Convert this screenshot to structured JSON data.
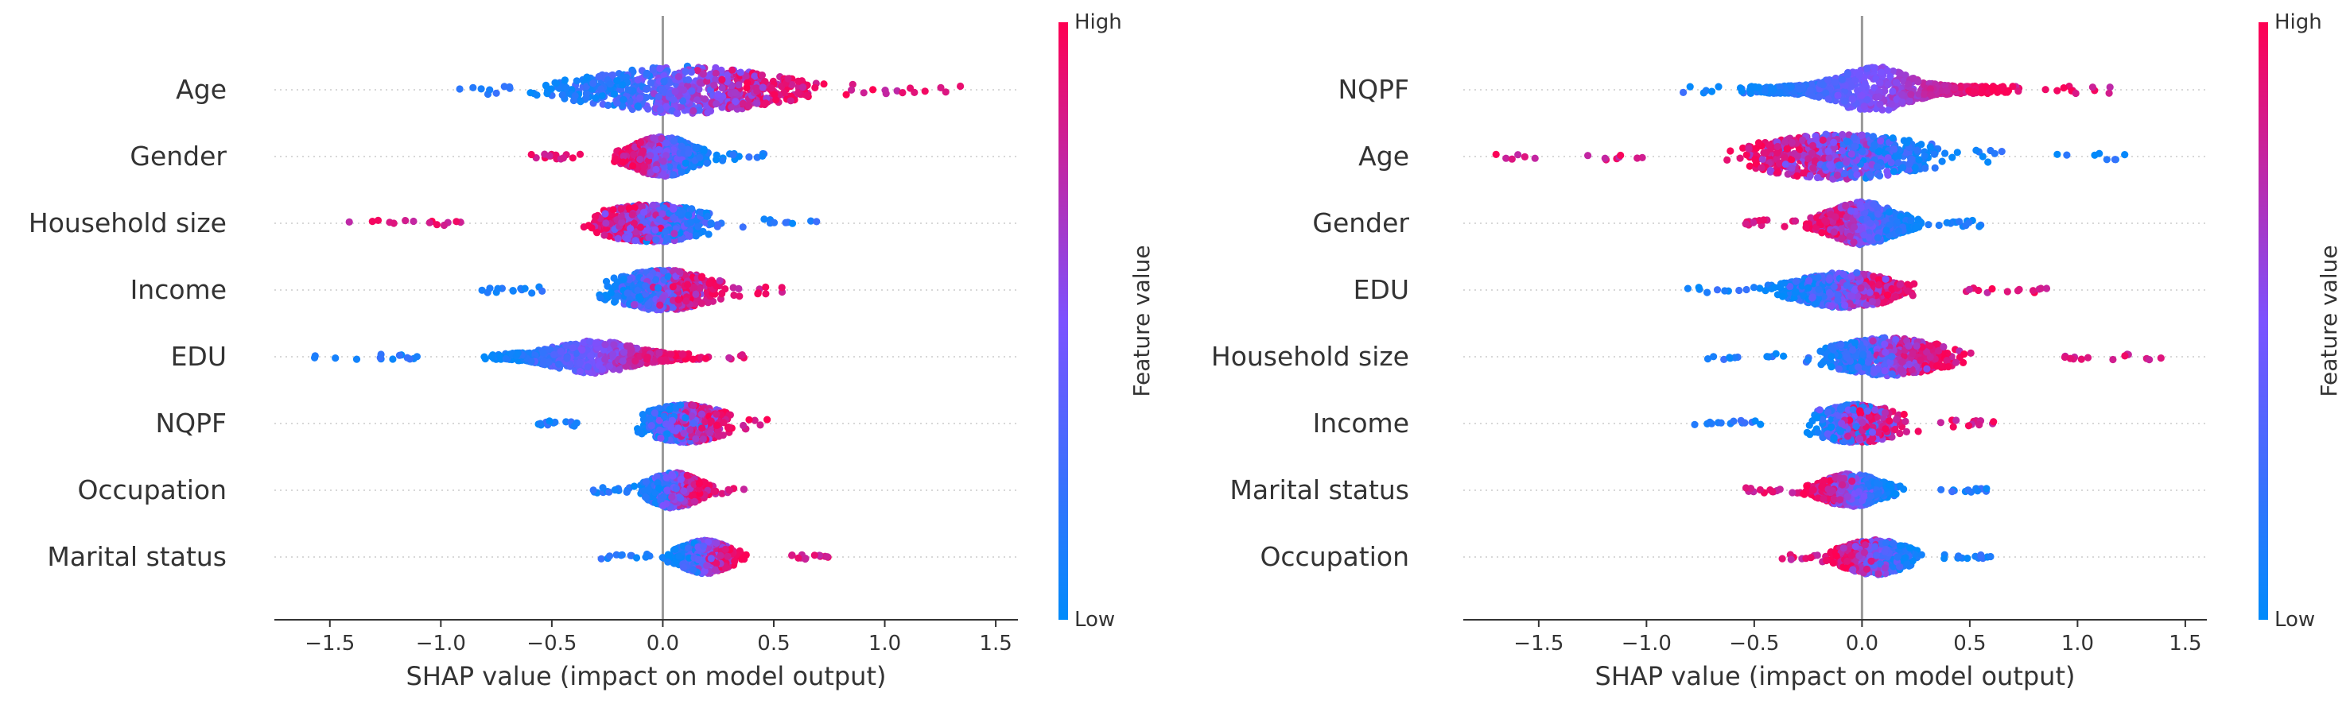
{
  "colors": {
    "low": "#008bfb",
    "mid": "#7c52ff",
    "high": "#ff0052",
    "zero_line": "#999999",
    "axis": "#333333",
    "guide": "#cccccc"
  },
  "chart_data": [
    {
      "type": "scatter",
      "subtype": "shap-beeswarm",
      "xlabel": "SHAP value (impact on model output)",
      "xlim": [
        -1.75,
        1.6
      ],
      "xticks": [
        -1.5,
        -1.0,
        -0.5,
        0.0,
        0.5,
        1.0,
        1.5
      ],
      "xtick_labels": [
        "−1.5",
        "−1.0",
        "−0.5",
        "0.0",
        "0.5",
        "1.0",
        "1.5"
      ],
      "colorbar": {
        "label": "Feature value",
        "high": "High",
        "low": "Low"
      },
      "features": [
        {
          "name": "Age",
          "min": -0.97,
          "max": 1.42,
          "low_center": -0.35,
          "high_center": 0.55,
          "spread": 0.55,
          "height": 1.0,
          "low_side": "left"
        },
        {
          "name": "Gender",
          "min": -0.63,
          "max": 0.47,
          "low_center": 0.15,
          "high_center": -0.15,
          "spread": 0.18,
          "height": 0.85,
          "low_side": "right"
        },
        {
          "name": "Household size",
          "min": -1.42,
          "max": 0.7,
          "low_center": 0.1,
          "high_center": -0.2,
          "spread": 0.35,
          "height": 0.8,
          "low_side": "right"
        },
        {
          "name": "Income",
          "min": -0.84,
          "max": 0.61,
          "low_center": -0.15,
          "high_center": 0.15,
          "spread": 0.3,
          "height": 0.85,
          "low_side": "left"
        },
        {
          "name": "EDU",
          "min": -1.6,
          "max": 0.38,
          "low_center": -0.7,
          "high_center": 0.08,
          "spread": 0.25,
          "height": 0.7,
          "low_side": "left"
        },
        {
          "name": "NQPF",
          "min": -0.65,
          "max": 0.47,
          "low_center": 0.0,
          "high_center": 0.2,
          "spread": 0.25,
          "height": 0.8,
          "low_side": "left"
        },
        {
          "name": "Occupation",
          "min": -0.32,
          "max": 0.38,
          "low_center": -0.05,
          "high_center": 0.15,
          "spread": 0.15,
          "height": 0.75,
          "low_side": "left"
        },
        {
          "name": "Marital status",
          "min": -0.28,
          "max": 0.86,
          "low_center": 0.08,
          "high_center": 0.3,
          "spread": 0.15,
          "height": 0.7,
          "low_side": "left"
        }
      ]
    },
    {
      "type": "scatter",
      "subtype": "shap-beeswarm",
      "xlabel": "SHAP value (impact on model output)",
      "xlim": [
        -1.85,
        1.6
      ],
      "xticks": [
        -1.5,
        -1.0,
        -0.5,
        0.0,
        0.5,
        1.0,
        1.5
      ],
      "xtick_labels": [
        "−1.5",
        "−1.0",
        "−0.5",
        "0.0",
        "0.5",
        "1.0",
        "1.5"
      ],
      "colorbar": {
        "label": "Feature value",
        "high": "High",
        "low": "Low"
      },
      "features": [
        {
          "name": "NQPF",
          "min": -0.85,
          "max": 1.22,
          "low_center": -0.5,
          "high_center": 0.6,
          "spread": 0.22,
          "height": 1.0,
          "low_side": "left"
        },
        {
          "name": "Age",
          "min": -1.72,
          "max": 1.27,
          "low_center": 0.2,
          "high_center": -0.4,
          "spread": 0.55,
          "height": 0.95,
          "low_side": "right"
        },
        {
          "name": "Gender",
          "min": -0.55,
          "max": 0.58,
          "low_center": 0.2,
          "high_center": -0.2,
          "spread": 0.2,
          "height": 0.9,
          "low_side": "right"
        },
        {
          "name": "EDU",
          "min": -0.85,
          "max": 0.9,
          "low_center": -0.3,
          "high_center": 0.15,
          "spread": 0.3,
          "height": 0.75,
          "low_side": "left"
        },
        {
          "name": "Household size",
          "min": -0.72,
          "max": 1.42,
          "low_center": -0.1,
          "high_center": 0.35,
          "spread": 0.35,
          "height": 0.8,
          "low_side": "left"
        },
        {
          "name": "Income",
          "min": -0.83,
          "max": 0.62,
          "low_center": -0.1,
          "high_center": 0.05,
          "spread": 0.3,
          "height": 0.8,
          "low_side": "left"
        },
        {
          "name": "Marital status",
          "min": -0.55,
          "max": 0.6,
          "low_center": 0.1,
          "high_center": -0.2,
          "spread": 0.18,
          "height": 0.7,
          "low_side": "right"
        },
        {
          "name": "Occupation",
          "min": -0.38,
          "max": 0.63,
          "low_center": 0.2,
          "high_center": -0.08,
          "spread": 0.2,
          "height": 0.75,
          "low_side": "right"
        }
      ]
    }
  ]
}
